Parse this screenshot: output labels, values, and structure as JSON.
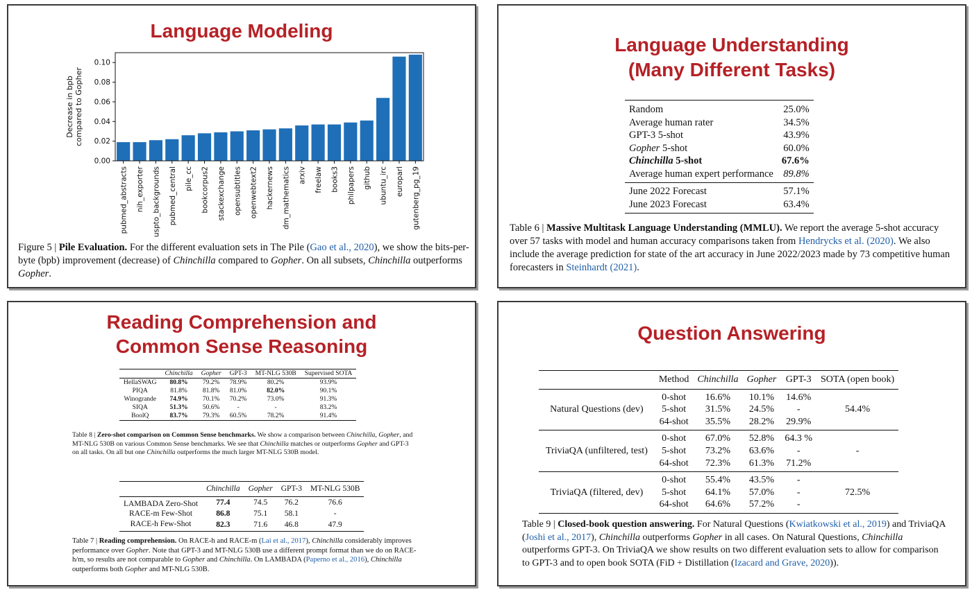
{
  "panels": {
    "lm": {
      "title": "Language Modeling",
      "caption": {
        "fig": "Figure 5 | ",
        "heading": "Pile Evaluation.",
        "t1": " For the different evaluation sets in The Pile (",
        "cite": "Gao et al., 2020",
        "t2": "), we show the bits-per-byte (bpb) improvement (decrease) of ",
        "m1": "Chinchilla",
        "t3": " compared to ",
        "m2": "Gopher",
        "t4": ". On all subsets, ",
        "m3": "Chinchilla",
        "t5": " outperforms ",
        "m4": "Gopher",
        "t6": "."
      }
    },
    "lu": {
      "title_line1": "Language Understanding",
      "title_line2": "(Many Different Tasks)",
      "rows": [
        {
          "label": "Random",
          "value": "25.0%",
          "label_style": "",
          "value_style": ""
        },
        {
          "label": "Average human rater",
          "value": "34.5%",
          "label_style": "",
          "value_style": ""
        },
        {
          "label": "GPT-3 5-shot",
          "value": "43.9%",
          "label_style": "",
          "value_style": ""
        },
        {
          "label_it": "Gopher",
          "label_rest": " 5-shot",
          "value": "60.0%",
          "label_style": "",
          "value_style": ""
        },
        {
          "label_it": "Chinchilla",
          "label_rest": " 5-shot",
          "value": "67.6%",
          "label_style": "bold",
          "value_style": "bold"
        },
        {
          "label": "Average human expert performance",
          "value": "89.8%",
          "label_style": "",
          "value_style": "italic"
        }
      ],
      "forecast_rows": [
        {
          "label": "June 2022 Forecast",
          "value": "57.1%"
        },
        {
          "label": "June 2023 Forecast",
          "value": "63.4%"
        }
      ],
      "caption": {
        "fig": "Table 6 | ",
        "heading": "Massive Multitask Language Understanding (MMLU).",
        "t1": " We report the average 5-shot accuracy over 57 tasks with model and human accuracy comparisons taken from ",
        "cite1": "Hendrycks et al. (2020)",
        "t2": ". We also include the average prediction for state of the art accuracy in June 2022/2023 made by 73 competitive human forecasters in ",
        "cite2": "Steinhardt (2021)",
        "t3": "."
      }
    },
    "rc": {
      "title_line1": "Reading Comprehension and",
      "title_line2": "Common Sense Reasoning",
      "cs_table": {
        "headers": [
          "",
          "Chinchilla",
          "Gopher",
          "GPT-3",
          "MT-NLG 530B",
          "Supervised SOTA"
        ],
        "rows": [
          {
            "name": "HellaSWAG",
            "cells": [
              "80.8%",
              "79.2%",
              "78.9%",
              "80.2%",
              "93.9%"
            ],
            "bold": [
              0
            ]
          },
          {
            "name": "PIQA",
            "cells": [
              "81.8%",
              "81.8%",
              "81.0%",
              "82.0%",
              "90.1%"
            ],
            "bold": [
              3
            ]
          },
          {
            "name": "Winogrande",
            "cells": [
              "74.9%",
              "70.1%",
              "70.2%",
              "73.0%",
              "91.3%"
            ],
            "bold": [
              0
            ]
          },
          {
            "name": "SIQA",
            "cells": [
              "51.3%",
              "50.6%",
              "-",
              "-",
              "83.2%"
            ],
            "bold": [
              0
            ]
          },
          {
            "name": "BoolQ",
            "cells": [
              "83.7%",
              "79.3%",
              "60.5%",
              "78.2%",
              "91.4%"
            ],
            "bold": [
              0
            ]
          }
        ],
        "caption": {
          "fig": "Table 8 | ",
          "heading": "Zero-shot comparison on Common Sense benchmarks.",
          "t1": " We show a comparison between ",
          "m1": "Chinchilla",
          "t2": ", ",
          "m2": "Gopher",
          "t3": ", and MT-NLG 530B on various Common Sense benchmarks. We see that ",
          "m3": "Chinchilla",
          "t4": " matches or outperforms ",
          "m4": "Gopher",
          "t5": " and GPT-3 on all tasks. On all but one ",
          "m5": "Chinchilla",
          "t6": " outperforms the much larger MT-NLG 530B model."
        }
      },
      "rd_table": {
        "headers": [
          "",
          "Chinchilla",
          "Gopher",
          "GPT-3",
          "MT-NLG 530B"
        ],
        "rows": [
          {
            "name": "LAMBADA Zero-Shot",
            "cells": [
              "77.4",
              "74.5",
              "76.2",
              "76.6"
            ],
            "bold": [
              0
            ]
          },
          {
            "name": "RACE-m Few-Shot",
            "cells": [
              "86.8",
              "75.1",
              "58.1",
              "-"
            ],
            "bold": [
              0
            ]
          },
          {
            "name": "RACE-h Few-Shot",
            "cells": [
              "82.3",
              "71.6",
              "46.8",
              "47.9"
            ],
            "bold": [
              0
            ]
          }
        ],
        "caption": {
          "fig": "Table 7 | ",
          "heading": "Reading comprehension.",
          "t1": " On RACE-h and RACE-m (",
          "cite1": "Lai et al., 2017",
          "t2": "), ",
          "m1": "Chinchilla",
          "t3": " considerably improves performance over ",
          "m2": "Gopher",
          "t4": ". Note that GPT-3 and MT-NLG 530B use a different prompt format than we do on RACE-h/m, so results are not comparable to ",
          "m3": "Gopher",
          "t5": " and ",
          "m4": "Chinchilla",
          "t6": ". On LAMBADA (",
          "cite2": "Paperno et al., 2016",
          "t7": "), ",
          "m5": "Chinchilla",
          "t8": " outperforms both ",
          "m6": "Gopher",
          "t9": " and MT-NLG 530B."
        }
      }
    },
    "qa": {
      "title": "Question Answering",
      "headers": [
        "",
        "Method",
        "Chinchilla",
        "Gopher",
        "GPT-3",
        "SOTA (open book)"
      ],
      "groups": [
        {
          "name": "Natural Questions (dev)",
          "sota": "54.4%",
          "rows": [
            {
              "method": "0-shot",
              "cells": [
                "16.6%",
                "10.1%",
                "14.6%"
              ]
            },
            {
              "method": "5-shot",
              "cells": [
                "31.5%",
                "24.5%",
                "-"
              ]
            },
            {
              "method": "64-shot",
              "cells": [
                "35.5%",
                "28.2%",
                "29.9%"
              ]
            }
          ]
        },
        {
          "name": "TriviaQA (unfiltered, test)",
          "sota": "-",
          "rows": [
            {
              "method": "0-shot",
              "cells": [
                "67.0%",
                "52.8%",
                "64.3 %"
              ]
            },
            {
              "method": "5-shot",
              "cells": [
                "73.2%",
                "63.6%",
                "-"
              ]
            },
            {
              "method": "64-shot",
              "cells": [
                "72.3%",
                "61.3%",
                "71.2%"
              ]
            }
          ]
        },
        {
          "name": "TriviaQA (filtered, dev)",
          "sota": "72.5%",
          "rows": [
            {
              "method": "0-shot",
              "cells": [
                "55.4%",
                "43.5%",
                "-"
              ]
            },
            {
              "method": "5-shot",
              "cells": [
                "64.1%",
                "57.0%",
                "-"
              ]
            },
            {
              "method": "64-shot",
              "cells": [
                "64.6%",
                "57.2%",
                "-"
              ]
            }
          ]
        }
      ],
      "caption": {
        "fig": "Table 9 | ",
        "heading": "Closed-book question answering.",
        "t1": " For Natural Questions (",
        "cite1": "Kwiatkowski et al., 2019",
        "t2": ") and TriviaQA (",
        "cite2": "Joshi et al., 2017",
        "t3": "), ",
        "m1": "Chinchilla",
        "t4": " outperforms ",
        "m2": "Gopher",
        "t5": " in all cases. On Natural Questions, ",
        "m3": "Chinchilla",
        "t6": " outperforms GPT-3. On TriviaQA we show results on two different evaluation sets to allow for comparison to GPT-3 and to open book SOTA (FiD + Distillation (",
        "cite3": "Izacard and Grave, 2020",
        "t7": "))."
      }
    }
  },
  "colors": {
    "title": "#b52126",
    "bar": "#1f6fb8",
    "cite": "#1f5ea8"
  },
  "chart_data": {
    "type": "bar",
    "title": "",
    "ylabel": "Decrease in bpb compared to Gopher",
    "xlabel": "",
    "ylim": [
      0,
      0.11
    ],
    "yticks": [
      "0.00",
      "0.02",
      "0.04",
      "0.06",
      "0.08",
      "0.10"
    ],
    "grid": false,
    "categories": [
      "pubmed_abstracts",
      "nih_exporter",
      "uspto_backgrounds",
      "pubmed_central",
      "pile_cc",
      "bookcorpus2",
      "stackexchange",
      "opensubtitles",
      "openwebtext2",
      "hackernews",
      "dm_mathematics",
      "arxiv",
      "freelaw",
      "books3",
      "philpapers",
      "github",
      "ubuntu_irc",
      "europarl",
      "gutenberg_pg_19"
    ],
    "values": [
      0.019,
      0.019,
      0.021,
      0.022,
      0.026,
      0.028,
      0.029,
      0.03,
      0.031,
      0.032,
      0.033,
      0.036,
      0.037,
      0.037,
      0.039,
      0.041,
      0.064,
      0.106,
      0.108
    ]
  }
}
